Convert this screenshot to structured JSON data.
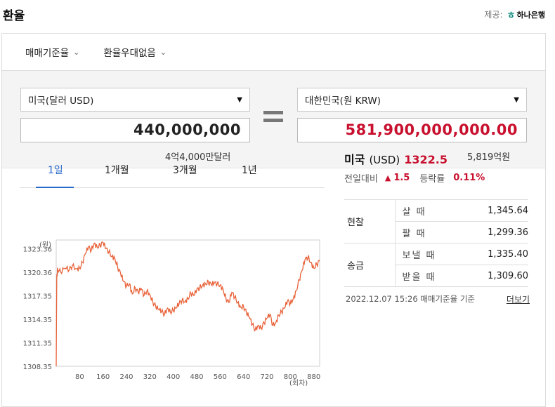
{
  "header": {
    "title": "환율",
    "provider_label": "제공:",
    "provider_name": "하나은행",
    "provider_mark": "ㅎ"
  },
  "topbar": {
    "rate_type": "매매기준율",
    "preferential": "환율우대없음"
  },
  "converter": {
    "from_currency": "미국(달러 USD)",
    "from_amount": "440,000,000",
    "from_words": "4억4,000만달러",
    "to_currency": "대한민국(원 KRW)",
    "to_amount": "581,900,000,000.00",
    "to_words": "5,819억원"
  },
  "tabs": [
    "1일",
    "1개월",
    "3개월",
    "1년"
  ],
  "summary": {
    "country": "미국",
    "unit": "(USD)",
    "rate": "1322.5",
    "prev_label": "전일대비",
    "change": "1.5",
    "pct_label": "등락률",
    "pct": "0.11%"
  },
  "rates": {
    "cash": "현찰",
    "remit": "송금",
    "buy_label": "살 때",
    "buy_value": "1,345.64",
    "sell_label": "팔 때",
    "sell_value": "1,299.36",
    "send_label": "보낼 때",
    "send_value": "1,335.40",
    "receive_label": "받을 때",
    "receive_value": "1,309.60"
  },
  "footer": {
    "timestamp": "2022.12.07 15:26 매매기준율 기준",
    "more": "더보기"
  },
  "colors": {
    "accent_red": "#c8102e",
    "line_color": "#e8633a",
    "tab_active": "#2a6acb"
  },
  "chart_data": {
    "type": "line",
    "yunit": "(원)",
    "xunit": "(회차)",
    "yticks": [
      1323.36,
      1320.36,
      1317.35,
      1314.35,
      1311.35,
      1308.35
    ],
    "xticks": [
      80,
      160,
      240,
      320,
      400,
      480,
      560,
      640,
      720,
      800,
      880
    ],
    "ylim": [
      1308.35,
      1324.5
    ],
    "xlim": [
      0,
      900
    ],
    "series": [
      {
        "x": [
          0,
          2,
          5,
          15,
          30,
          45,
          55,
          70,
          80,
          90,
          100,
          110,
          120,
          130,
          140,
          150,
          160,
          170,
          180,
          190,
          200,
          210,
          220,
          230,
          240,
          250,
          260,
          270,
          280,
          290,
          300,
          310,
          320,
          330,
          340,
          350,
          360,
          370,
          380,
          390,
          400,
          410,
          420,
          430,
          440,
          450,
          460,
          470,
          480,
          490,
          500,
          510,
          520,
          530,
          540,
          550,
          560,
          570,
          580,
          590,
          600,
          610,
          620,
          630,
          640,
          650,
          660,
          670,
          680,
          690,
          700,
          710,
          720,
          730,
          740,
          750,
          760,
          770,
          780,
          790,
          800,
          810,
          820,
          830,
          840,
          850,
          860,
          870,
          880,
          890,
          900
        ],
        "y": [
          1308.35,
          1319.8,
          1320.8,
          1320.4,
          1320.9,
          1320.7,
          1321.2,
          1320.8,
          1320.9,
          1321.6,
          1322.8,
          1323.6,
          1323.2,
          1324.1,
          1323.6,
          1323.8,
          1324.2,
          1323.4,
          1323.0,
          1322.4,
          1322.2,
          1321.0,
          1320.2,
          1319.2,
          1318.6,
          1318.9,
          1317.6,
          1318.4,
          1317.8,
          1318.3,
          1317.4,
          1318.0,
          1317.5,
          1316.6,
          1316.0,
          1315.6,
          1315.4,
          1315.0,
          1315.8,
          1315.3,
          1315.5,
          1315.8,
          1316.4,
          1316.8,
          1316.6,
          1317.0,
          1317.7,
          1317.4,
          1318.1,
          1318.4,
          1318.7,
          1318.9,
          1319.1,
          1318.8,
          1319.0,
          1318.9,
          1318.7,
          1318.2,
          1317.0,
          1316.5,
          1317.8,
          1317.2,
          1316.5,
          1315.9,
          1316.0,
          1315.2,
          1314.6,
          1313.7,
          1313.0,
          1313.6,
          1313.2,
          1313.9,
          1314.5,
          1315.0,
          1313.6,
          1313.9,
          1314.9,
          1315.3,
          1315.8,
          1316.7,
          1316.4,
          1317.0,
          1318.0,
          1319.4,
          1320.6,
          1322.0,
          1322.3,
          1321.6,
          1320.9,
          1321.4,
          1321.8
        ]
      }
    ]
  }
}
